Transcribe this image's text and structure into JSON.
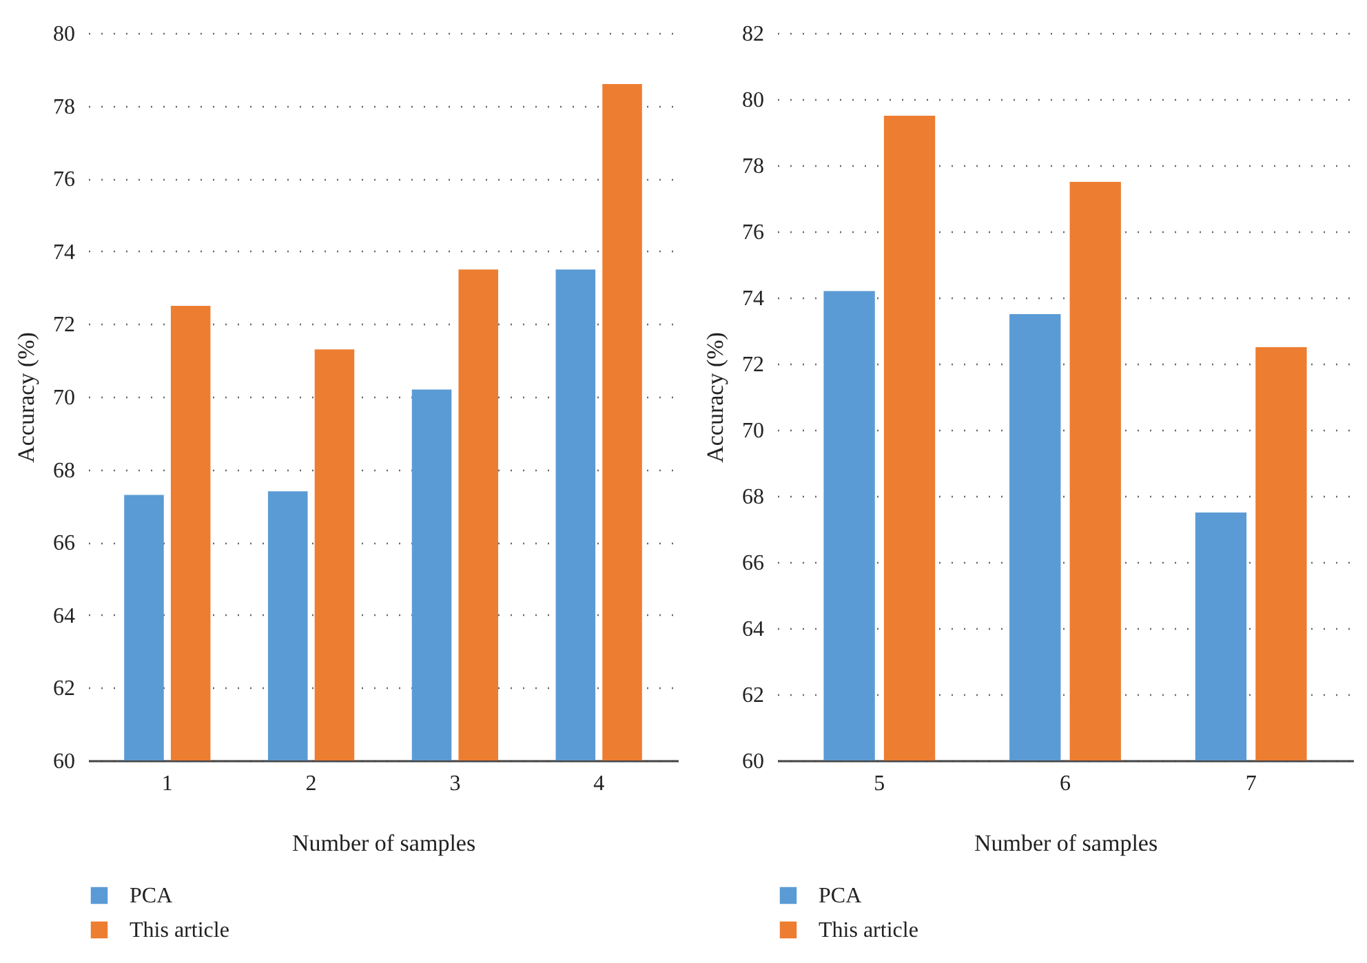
{
  "chart_data": [
    {
      "type": "bar",
      "categories": [
        "1",
        "2",
        "3",
        "4"
      ],
      "xlabel": "Number of samples",
      "ylabel": "Accuracy (%)",
      "series": [
        {
          "name": "PCA",
          "color": "#5b9bd5",
          "values": [
            67.3,
            67.4,
            70.2,
            73.5
          ]
        },
        {
          "name": "This article",
          "color": "#ed7d31",
          "values": [
            72.5,
            71.3,
            73.5,
            78.6
          ]
        }
      ],
      "ylim": [
        60,
        80
      ],
      "yticks": [
        60,
        62,
        64,
        66,
        68,
        70,
        72,
        74,
        76,
        78,
        80
      ],
      "grid": "y",
      "legend": "bottom left"
    },
    {
      "type": "bar",
      "categories": [
        "5",
        "6",
        "7"
      ],
      "xlabel": "Number of samples",
      "ylabel": "Accuracy (%)",
      "series": [
        {
          "name": "PCA",
          "color": "#5b9bd5",
          "values": [
            74.2,
            73.5,
            67.5
          ]
        },
        {
          "name": "This article",
          "color": "#ed7d31",
          "values": [
            79.5,
            77.5,
            72.5
          ]
        }
      ],
      "ylim": [
        60,
        82
      ],
      "yticks": [
        60,
        62,
        64,
        66,
        68,
        70,
        72,
        74,
        76,
        78,
        80,
        82
      ],
      "grid": "y",
      "legend": "bottom left"
    }
  ]
}
